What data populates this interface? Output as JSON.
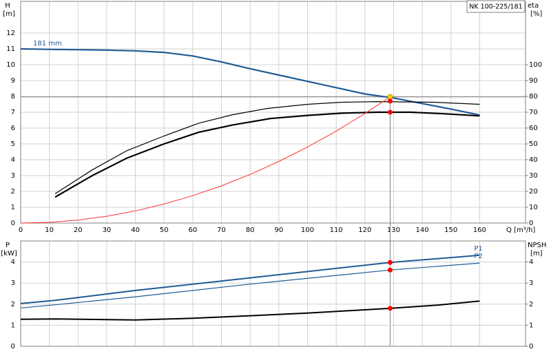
{
  "chart_data": [
    {
      "type": "line",
      "title": "NK 100-225/181",
      "xlabel": "Q [m³/h]",
      "ylabel": "H",
      "yunit": "[m]",
      "y2label": "eta",
      "y2unit": "[%]",
      "xlim": [
        0,
        176
      ],
      "xticks": [
        0,
        10,
        20,
        30,
        40,
        50,
        60,
        70,
        80,
        90,
        100,
        110,
        120,
        130,
        140,
        150,
        160
      ],
      "ylim": [
        0,
        14
      ],
      "yticks": [
        0,
        1,
        2,
        3,
        4,
        5,
        6,
        7,
        8,
        9,
        10,
        11,
        12
      ],
      "y2lim": [
        0,
        140
      ],
      "y2ticks": [
        0,
        10,
        20,
        30,
        40,
        50,
        60,
        70,
        80,
        90,
        100
      ],
      "grid": true,
      "series": [
        {
          "name": "181 mm",
          "label_at": "start",
          "color": "#1f5a96",
          "width": 2.2,
          "x": [
            0,
            10,
            20,
            30,
            40,
            50,
            60,
            70,
            80,
            90,
            100,
            110,
            120,
            130,
            140,
            150,
            160
          ],
          "values": [
            11,
            10.97,
            10.95,
            10.92,
            10.88,
            10.78,
            10.55,
            10.18,
            9.75,
            9.35,
            8.95,
            8.55,
            8.15,
            7.9,
            7.55,
            7.2,
            6.82
          ]
        },
        {
          "color": "#000000",
          "width": 1.2,
          "axis": "y2",
          "x": [
            12,
            25,
            37,
            50,
            62,
            74,
            86,
            100,
            112,
            124,
            144,
            160
          ],
          "values": [
            18.5,
            33.6,
            45.7,
            55,
            63,
            68.5,
            72.4,
            75,
            76.3,
            76.7,
            76.3,
            75
          ]
        },
        {
          "color": "#000000",
          "width": 2.2,
          "axis": "y2",
          "x": [
            12,
            25,
            37,
            50,
            62,
            74,
            87,
            100,
            112,
            124,
            136,
            148,
            160
          ],
          "values": [
            16.4,
            30,
            41,
            50,
            57.3,
            62,
            66,
            68,
            69.4,
            70,
            70,
            69,
            67.7
          ]
        },
        {
          "color": "#ff3030",
          "width": 1,
          "x": [
            0,
            10,
            20,
            30,
            40,
            50,
            60,
            70,
            80,
            90,
            100,
            110,
            120,
            128.8
          ],
          "values": [
            0,
            0.05,
            0.19,
            0.43,
            0.77,
            1.2,
            1.73,
            2.35,
            3.07,
            3.89,
            4.8,
            5.81,
            6.92,
            7.97
          ]
        }
      ],
      "duty_point": {
        "x": 128.8,
        "y": 7.97
      },
      "points": [
        {
          "x": 128.8,
          "y": 7.97,
          "color": "#ffd400"
        },
        {
          "x": 128.8,
          "y": 77,
          "axis": "y2",
          "color": "#ff0000"
        },
        {
          "x": 128.8,
          "y": 70,
          "axis": "y2",
          "color": "#ff0000"
        }
      ]
    },
    {
      "type": "line",
      "ylabel": "P",
      "yunit": "[kW]",
      "y2label": "NPSH",
      "y2unit": "[m]",
      "ylim": [
        0,
        5
      ],
      "yticks": [
        0,
        1,
        2,
        3,
        4
      ],
      "y2lim": [
        0,
        5
      ],
      "y2ticks": [
        0,
        1,
        2,
        3,
        4
      ],
      "grid": true,
      "series": [
        {
          "name": "P1",
          "label_at": "end",
          "color": "#1f5a96",
          "width": 2,
          "x": [
            0,
            12,
            40,
            80,
            128.8,
            160
          ],
          "values": [
            2.03,
            2.18,
            2.65,
            3.25,
            3.98,
            4.32
          ]
        },
        {
          "name": "P2",
          "label_at": "end",
          "color": "#1f5a96",
          "width": 1.2,
          "x": [
            0,
            12,
            40,
            80,
            128.8,
            160
          ],
          "values": [
            1.82,
            1.97,
            2.35,
            2.95,
            3.62,
            3.95
          ]
        },
        {
          "color": "#000000",
          "width": 2,
          "axis": "y2",
          "x": [
            0,
            12,
            40,
            60,
            80,
            100,
            128.8,
            145,
            160
          ],
          "values": [
            1.28,
            1.3,
            1.25,
            1.33,
            1.45,
            1.58,
            1.8,
            1.95,
            2.15
          ]
        }
      ],
      "points": [
        {
          "x": 128.8,
          "y": 3.98,
          "color": "#ff0000"
        },
        {
          "x": 128.8,
          "y": 3.62,
          "color": "#ff0000"
        },
        {
          "x": 128.8,
          "y": 1.8,
          "axis": "y2",
          "color": "#ff0000"
        }
      ]
    }
  ]
}
